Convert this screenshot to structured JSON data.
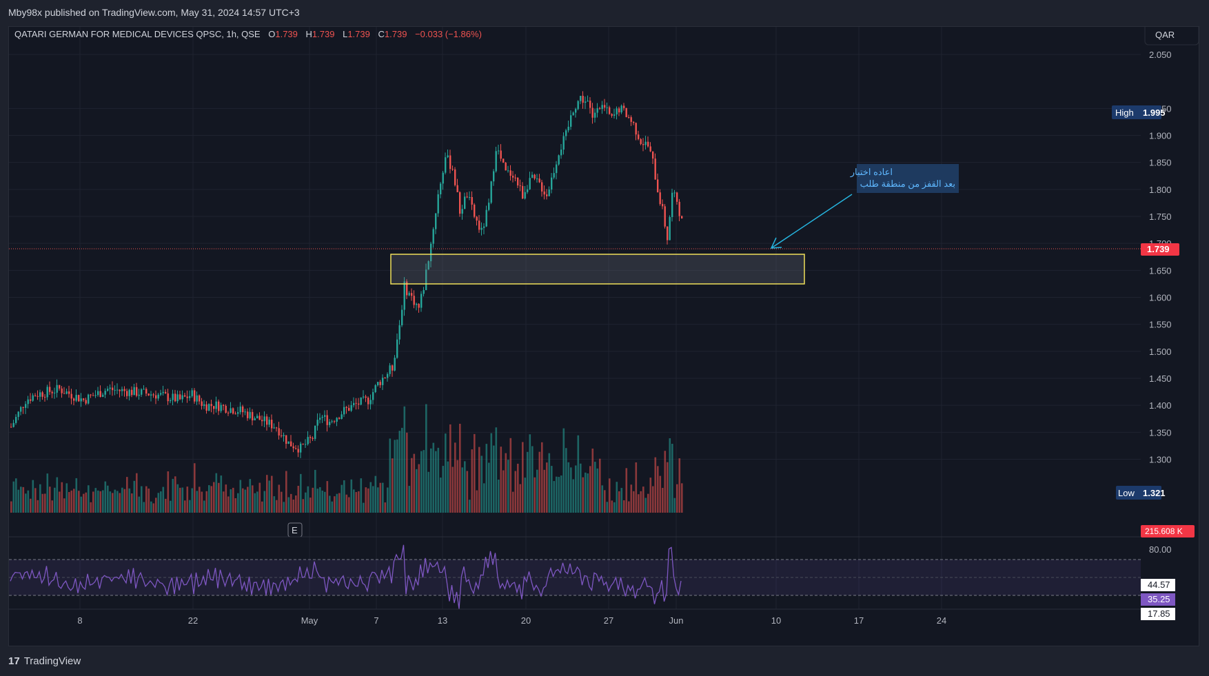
{
  "header": {
    "publish_line": "Mby98x published on TradingView.com, May 31, 2024 14:57 UTC+3"
  },
  "symbol": {
    "name": "QATARI GERMAN FOR MEDICAL DEVICES QPSC, 1h, QSE",
    "o_label": "O",
    "o_value": "1.739",
    "h_label": "H",
    "h_value": "1.739",
    "l_label": "L",
    "l_value": "1.739",
    "c_label": "C",
    "c_value": "1.739",
    "change": "−0.033 (−1.86%)"
  },
  "currency_button": "QAR",
  "high_badge": {
    "label": "High",
    "value": "1.995"
  },
  "low_badge": {
    "label": "Low",
    "value": "1.321"
  },
  "last_price": "1.739",
  "volume_label": "215.608 K",
  "earnings_marker": "E",
  "annotation": {
    "line1": "اعاده اختبار",
    "line2": "بعد القفز من منطقة طلب"
  },
  "rsi": {
    "upper": "80.00",
    "value_a": "44.57",
    "value_b": "35.25",
    "value_c": "17.85"
  },
  "colors": {
    "bg": "#131722",
    "up": "#26a69a",
    "down": "#ef5350",
    "grid": "#1f2330",
    "zone": "#f0e05a",
    "rsi": "#7e57c2",
    "badge": "#1c3a6b",
    "arrow": "#26b5e0"
  },
  "footer": {
    "brand": "TradingView"
  },
  "chart_data": {
    "type": "candlestick",
    "price_axis_ticks": [
      "2.050",
      "1.950",
      "1.900",
      "1.850",
      "1.800",
      "1.750",
      "1.700",
      "1.650",
      "1.600",
      "1.550",
      "1.500",
      "1.450",
      "1.400",
      "1.350",
      "1.300"
    ],
    "time_axis_ticks": [
      "8",
      "22",
      "May",
      "7",
      "13",
      "20",
      "27",
      "Jun",
      "10",
      "17",
      "24"
    ],
    "demand_zone": [
      1.682,
      1.731
    ],
    "ylim": [
      1.25,
      2.08
    ],
    "rsi_levels": [
      70,
      30
    ],
    "price_path": [
      [
        0,
        1.36
      ],
      [
        6,
        1.41
      ],
      [
        10,
        1.42
      ],
      [
        20,
        1.43
      ],
      [
        30,
        1.41
      ],
      [
        40,
        1.43
      ],
      [
        60,
        1.42
      ],
      [
        70,
        1.41
      ],
      [
        75,
        1.42
      ],
      [
        80,
        1.4
      ],
      [
        85,
        1.4
      ],
      [
        95,
        1.39
      ],
      [
        100,
        1.38
      ],
      [
        110,
        1.36
      ],
      [
        115,
        1.33
      ],
      [
        120,
        1.32
      ],
      [
        125,
        1.34
      ],
      [
        128,
        1.38
      ],
      [
        132,
        1.37
      ],
      [
        138,
        1.39
      ],
      [
        142,
        1.4
      ],
      [
        148,
        1.41
      ],
      [
        152,
        1.44
      ],
      [
        158,
        1.47
      ],
      [
        161,
        1.55
      ],
      [
        163,
        1.62
      ],
      [
        166,
        1.6
      ],
      [
        169,
        1.58
      ],
      [
        171,
        1.62
      ],
      [
        174,
        1.7
      ],
      [
        177,
        1.79
      ],
      [
        180,
        1.86
      ],
      [
        183,
        1.84
      ],
      [
        186,
        1.76
      ],
      [
        189,
        1.79
      ],
      [
        192,
        1.75
      ],
      [
        195,
        1.72
      ],
      [
        198,
        1.77
      ],
      [
        201,
        1.88
      ],
      [
        205,
        1.83
      ],
      [
        208,
        1.83
      ],
      [
        210,
        1.81
      ],
      [
        212,
        1.79
      ],
      [
        215,
        1.82
      ],
      [
        219,
        1.81
      ],
      [
        222,
        1.79
      ],
      [
        224,
        1.82
      ],
      [
        227,
        1.87
      ],
      [
        230,
        1.9
      ],
      [
        233,
        1.95
      ],
      [
        236,
        1.97
      ],
      [
        239,
        1.96
      ],
      [
        241,
        1.93
      ],
      [
        243,
        1.96
      ],
      [
        246,
        1.95
      ],
      [
        249,
        1.93
      ],
      [
        252,
        1.95
      ],
      [
        255,
        1.94
      ],
      [
        258,
        1.92
      ],
      [
        261,
        1.89
      ],
      [
        264,
        1.88
      ],
      [
        266,
        1.85
      ],
      [
        268,
        1.8
      ],
      [
        270,
        1.76
      ],
      [
        272,
        1.71
      ],
      [
        274,
        1.79
      ],
      [
        276,
        1.78
      ],
      [
        278,
        1.74
      ]
    ]
  }
}
